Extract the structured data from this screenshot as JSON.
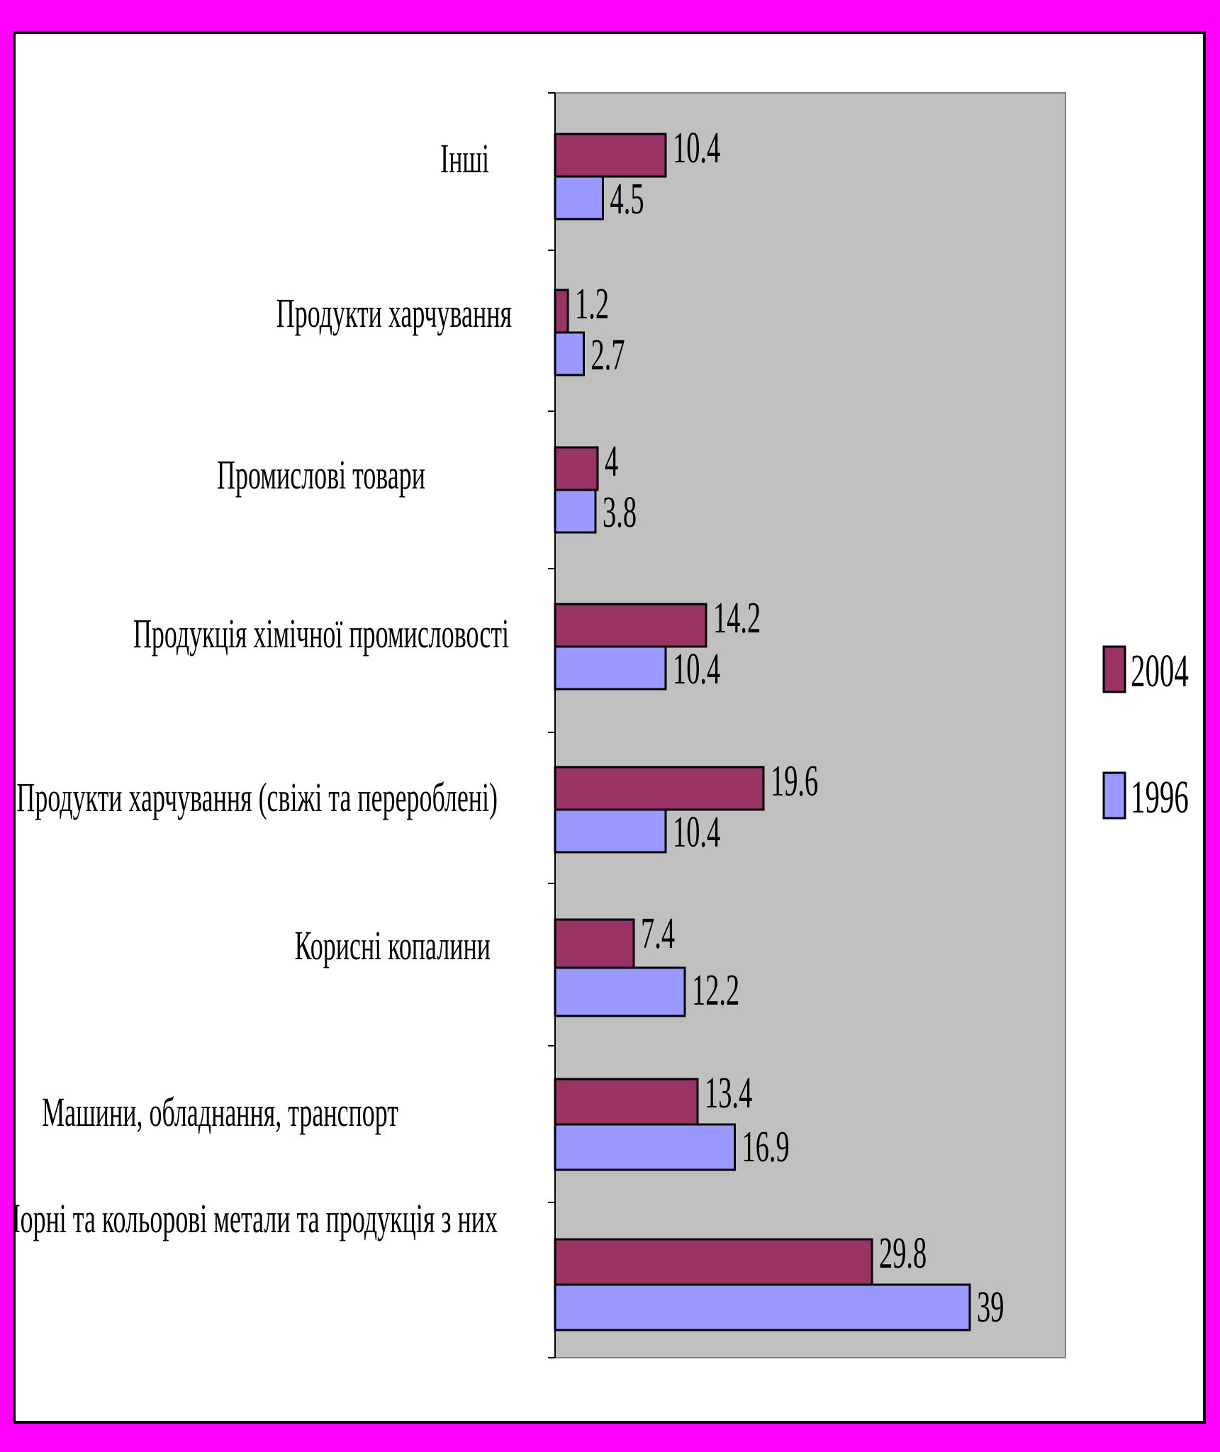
{
  "colors": {
    "page_border": "#ff00ff",
    "plot_background": "#c0c0c0",
    "series_2004": "#993366",
    "series_1996": "#9999ff"
  },
  "chart_data": {
    "type": "bar",
    "orientation": "horizontal",
    "title": "",
    "xlabel": "",
    "ylabel": "",
    "xlim": [
      0,
      48
    ],
    "grid": false,
    "legend_position": "right",
    "categories": [
      "Інші",
      "Продукти харчування",
      "Промислові товари",
      "Продукція хімічної промисловості",
      "Продукти харчування (свіжі та перероблені)",
      "Корисні копалини",
      "Машини, обладнання, транспорт",
      "Чорні та кольорові метали та продукція з них"
    ],
    "series": [
      {
        "name": "2004",
        "color": "#993366",
        "values": [
          10.4,
          1.2,
          4,
          14.2,
          19.6,
          7.4,
          13.4,
          29.8
        ]
      },
      {
        "name": "1996",
        "color": "#9999ff",
        "values": [
          4.5,
          2.7,
          3.8,
          10.4,
          10.4,
          12.2,
          16.9,
          39
        ]
      }
    ],
    "data_labels": {
      "2004": [
        "10.4",
        "1.2",
        "4",
        "14.2",
        "19.6",
        "7.4",
        "13.4",
        "29.8"
      ],
      "1996": [
        "4.5",
        "2.7",
        "3.8",
        "10.4",
        "10.4",
        "12.2",
        "16.9",
        "39"
      ]
    }
  }
}
